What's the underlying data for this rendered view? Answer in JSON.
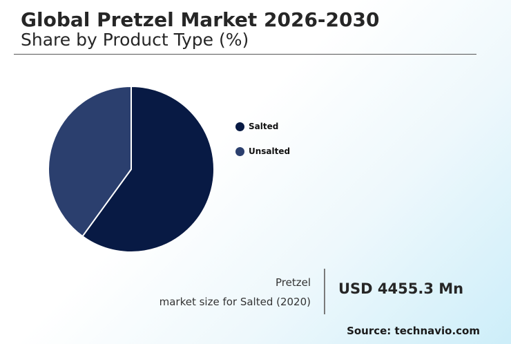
{
  "header": {
    "title": "Global Pretzel Market 2026-2030",
    "subtitle": "Share by Product Type (%)"
  },
  "chart_data": {
    "type": "pie",
    "categories": [
      "Salted",
      "Unsalted"
    ],
    "values": [
      60,
      40
    ],
    "colors": [
      "#081a44",
      "#2b3f6e"
    ],
    "legend_position": "right"
  },
  "stat": {
    "line1": "Pretzel",
    "line2": "market size for Salted (2020)",
    "value": "USD 4455.3 Mn"
  },
  "footer": {
    "source": "Source: technavio.com"
  }
}
